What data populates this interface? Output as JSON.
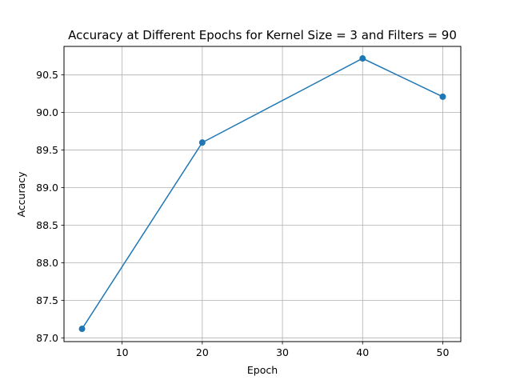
{
  "chart_data": {
    "type": "line",
    "title": "Accuracy at Different Epochs for Kernel Size = 3 and Filters = 90",
    "xlabel": "Epoch",
    "ylabel": "Accuracy",
    "x": [
      5,
      20,
      40,
      50
    ],
    "series": [
      {
        "values": [
          87.12,
          89.6,
          90.72,
          90.21
        ]
      }
    ],
    "xlim": [
      2.75,
      52.25
    ],
    "ylim": [
      86.95,
      90.88
    ],
    "xticks": [
      10,
      20,
      30,
      40,
      50
    ],
    "yticks": [
      87.0,
      87.5,
      88.0,
      88.5,
      89.0,
      89.5,
      90.0,
      90.5
    ],
    "xtick_labels": [
      "10",
      "20",
      "30",
      "40",
      "50"
    ],
    "ytick_labels": [
      "87.0",
      "87.5",
      "88.0",
      "88.5",
      "89.0",
      "89.5",
      "90.0",
      "90.5"
    ],
    "grid": true,
    "marker": "circle",
    "line_color": "#1f77b4"
  }
}
